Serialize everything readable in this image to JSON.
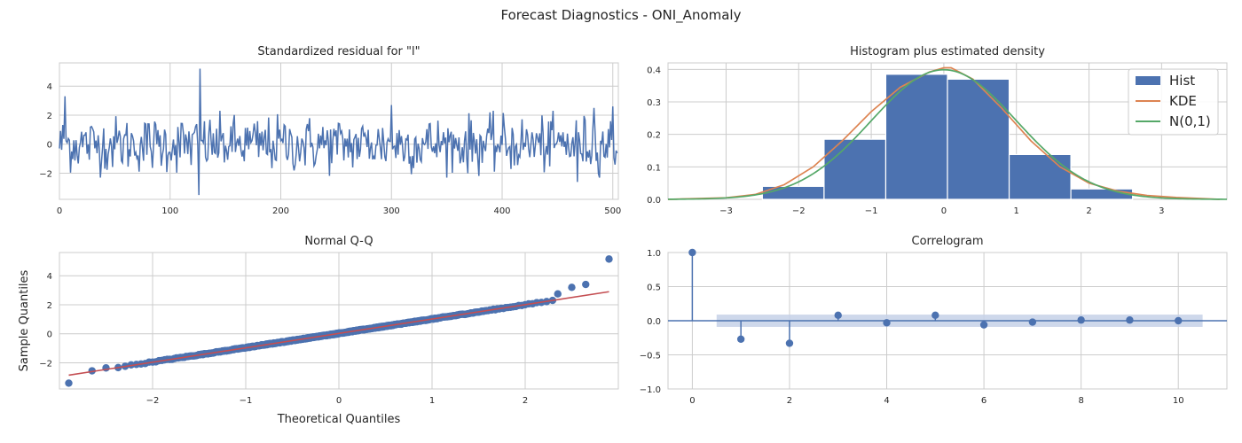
{
  "figure": {
    "title": "Forecast Diagnostics - ONI_Anomaly"
  },
  "colors": {
    "blue": "#4c72b0",
    "orange": "#dd8452",
    "green": "#55a868",
    "red": "#c44e52",
    "grid": "#cccccc",
    "band": "#c6d1e8"
  },
  "chart_data": [
    {
      "id": "residual",
      "type": "line",
      "title": "Standardized residual for \"l\"",
      "xlabel": "",
      "ylabel": "",
      "xlim": [
        0,
        505
      ],
      "ylim": [
        -3.8,
        5.6
      ],
      "xticks": [
        0,
        100,
        200,
        300,
        400,
        500
      ],
      "yticks": [
        -2,
        0,
        2,
        4
      ],
      "grid": true,
      "n_points": 505,
      "approx_std": 1.0,
      "notable_points": [
        {
          "x": 5,
          "y": 3.3
        },
        {
          "x": 127,
          "y": 5.2
        },
        {
          "x": 126,
          "y": -3.5
        },
        {
          "x": 300,
          "y": 2.7
        },
        {
          "x": 483,
          "y": 2.5
        },
        {
          "x": 468,
          "y": -2.6
        },
        {
          "x": 500,
          "y": 2.6
        }
      ]
    },
    {
      "id": "histogram",
      "type": "bar",
      "title": "Histogram plus estimated density",
      "xlim": [
        -3.8,
        3.9
      ],
      "ylim": [
        0,
        0.42
      ],
      "xticks": [
        -3,
        -2,
        -1,
        0,
        1,
        2,
        3
      ],
      "yticks": [
        0.0,
        0.1,
        0.2,
        0.3,
        0.4
      ],
      "grid": true,
      "legend": {
        "position": "top-right",
        "entries": [
          "Hist",
          "KDE",
          "N(0,1)"
        ]
      },
      "bin_edges": [
        -2.5,
        -1.65,
        -0.8,
        0.05,
        0.9,
        1.75,
        2.6
      ],
      "values": [
        0.04,
        0.185,
        0.385,
        0.37,
        0.138,
        0.032
      ],
      "kde": {
        "x": [
          -3.8,
          -3.0,
          -2.6,
          -2.2,
          -1.8,
          -1.4,
          -1.0,
          -0.6,
          -0.2,
          0.0,
          0.1,
          0.4,
          0.8,
          1.2,
          1.6,
          2.0,
          2.4,
          2.8,
          3.2,
          3.8
        ],
        "y": [
          0.0,
          0.005,
          0.015,
          0.045,
          0.1,
          0.18,
          0.27,
          0.345,
          0.392,
          0.405,
          0.405,
          0.37,
          0.28,
          0.18,
          0.1,
          0.05,
          0.025,
          0.012,
          0.006,
          0.0
        ]
      },
      "normal": {
        "mean": 0,
        "std": 1
      }
    },
    {
      "id": "qq",
      "type": "scatter",
      "title": "Normal Q-Q",
      "xlabel": "Theoretical Quantiles",
      "ylabel": "Sample Quantiles",
      "xlim": [
        -3.0,
        3.0
      ],
      "ylim": [
        -3.8,
        5.6
      ],
      "xticks": [
        -2,
        -1,
        0,
        1,
        2
      ],
      "yticks": [
        -2,
        0,
        2,
        4
      ],
      "grid": true,
      "n_points": 505,
      "reference_line": {
        "x": [
          -2.9,
          2.9
        ],
        "y": [
          -2.85,
          2.9
        ]
      },
      "tail_points": [
        {
          "x": -2.9,
          "y": -3.4
        },
        {
          "x": -2.65,
          "y": -2.55
        },
        {
          "x": -2.5,
          "y": -2.35
        },
        {
          "x": 2.35,
          "y": 2.75
        },
        {
          "x": 2.5,
          "y": 3.2
        },
        {
          "x": 2.65,
          "y": 3.4
        },
        {
          "x": 2.9,
          "y": 5.15
        }
      ]
    },
    {
      "id": "correlogram",
      "type": "scatter",
      "title": "Correlogram",
      "xlim": [
        -0.5,
        11.0
      ],
      "ylim": [
        -1.0,
        1.0
      ],
      "xticks": [
        0,
        2,
        4,
        6,
        8,
        10
      ],
      "yticks": [
        -1.0,
        -0.5,
        0.0,
        0.5,
        1.0
      ],
      "grid": true,
      "lags": [
        0,
        1,
        2,
        3,
        4,
        5,
        6,
        7,
        8,
        9,
        10
      ],
      "values": [
        1.0,
        -0.27,
        -0.33,
        0.08,
        -0.03,
        0.08,
        -0.06,
        -0.02,
        0.01,
        0.01,
        0.0
      ],
      "confidence_band": 0.09
    }
  ]
}
